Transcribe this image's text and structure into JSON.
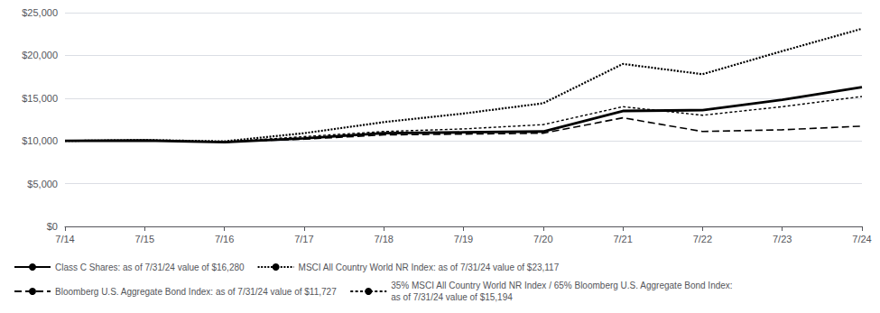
{
  "chart_data": {
    "type": "line",
    "categories": [
      "7/14",
      "7/15",
      "7/16",
      "7/17",
      "7/18",
      "7/19",
      "7/20",
      "7/21",
      "7/22",
      "7/23",
      "7/24"
    ],
    "ylim": [
      0,
      25000
    ],
    "yticks": [
      {
        "value": 0,
        "label": "$0"
      },
      {
        "value": 5000,
        "label": "$5,000"
      },
      {
        "value": 10000,
        "label": "$10,000"
      },
      {
        "value": 15000,
        "label": "$15,000"
      },
      {
        "value": 20000,
        "label": "$20,000"
      },
      {
        "value": 25000,
        "label": "$25,000"
      }
    ],
    "grid": true,
    "legend": "bottom",
    "series": [
      {
        "name": "Class C Shares: as of 7/31/24 value of $16,280",
        "color": "#000000",
        "line_style": "solid",
        "values": [
          10000,
          10050,
          9850,
          10300,
          10900,
          11000,
          11100,
          13500,
          13600,
          14800,
          16280
        ]
      },
      {
        "name": "MSCI All Country World NR Index: as of 7/31/24 value of $23,117",
        "color": "#000000",
        "line_style": "densely_dotted",
        "values": [
          10000,
          10100,
          9950,
          10900,
          12200,
          13200,
          14400,
          19000,
          17800,
          20500,
          23117
        ]
      },
      {
        "name": "Bloomberg U.S. Aggregate Bond Index: as of 7/31/24 value of $11,727",
        "color": "#000000",
        "line_style": "dashed",
        "values": [
          10000,
          10050,
          9900,
          10200,
          10700,
          10800,
          10900,
          12700,
          11100,
          11300,
          11727
        ]
      },
      {
        "name": "35% MSCI All Country World NR Index / 65% Bloomberg U.S. Aggregate Bond Index:\nas of 7/31/24 value of $15,194",
        "color": "#000000",
        "line_style": "dotted",
        "values": [
          10000,
          10050,
          9900,
          10500,
          11100,
          11400,
          11900,
          14000,
          13000,
          14000,
          15194
        ]
      }
    ]
  }
}
